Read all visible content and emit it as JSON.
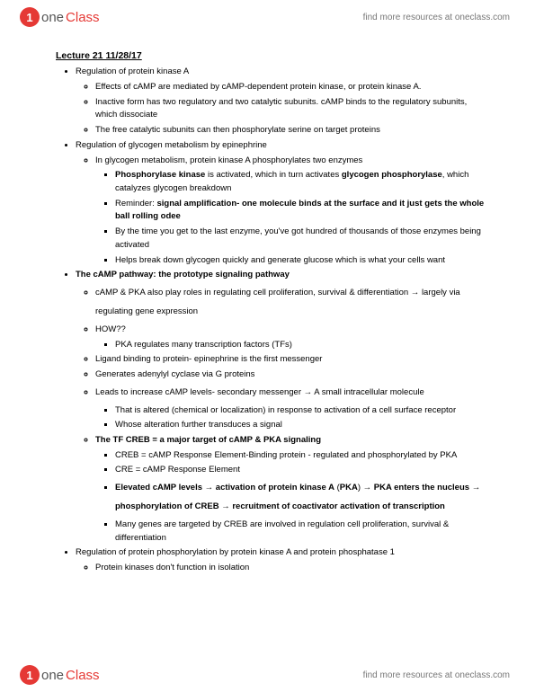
{
  "brand": {
    "badge": "1",
    "one": "one",
    "class": "Class"
  },
  "header_link": "find more resources at oneclass.com",
  "footer_link": "find more resources at oneclass.com",
  "title": "Lecture 21 11/28/17",
  "b1": "Regulation of protein kinase A",
  "b1a": "Effects of cAMP are mediated by cAMP-dependent protein kinase, or protein kinase A.",
  "b1b": "Inactive form has two regulatory and two catalytic subunits. cAMP binds to the regulatory subunits, which dissociate",
  "b1c": "The free catalytic subunits can then phosphorylate serine on target proteins",
  "b2": "Regulation of glycogen metabolism by epinephrine",
  "b2a": "In glycogen metabolism, protein kinase A phosphorylates two enzymes",
  "b2a1_pk": "Phosphorylase kinase",
  "b2a1_mid": " is activated, which in turn activates ",
  "b2a1_gp": "glycogen phosphorylase",
  "b2a1_end": ", which catalyzes glycogen breakdown",
  "b2a2_pre": "Reminder: ",
  "b2a2_bold": "signal amplification- one molecule binds at the surface and it just gets the whole ball rolling odee",
  "b2a3": "By the time you get to the last enzyme, you've got hundred of thousands of those enzymes being activated",
  "b2a4": "Helps break down glycogen quickly and generate glucose which is what your cells want",
  "b3": "The cAMP pathway: the prototype signaling pathway",
  "b3a": "cAMP & PKA also play roles in regulating cell proliferation, survival & differentiation → largely via regulating gene expression",
  "b3b": "HOW??",
  "b3b1": "PKA regulates many transcription factors (TFs)",
  "b3c": "Ligand binding to protein- epinephrine is the first messenger",
  "b3d": "Generates adenylyl cyclase via G proteins",
  "b3e": "Leads to increase cAMP levels- secondary messenger → A small intracellular molecule",
  "b3e1": "That is altered (chemical or localization) in response to activation of a cell surface receptor",
  "b3e2": "Whose alteration further transduces a signal",
  "b3f": "The TF CREB = a major target of cAMP & PKA signaling",
  "b3f1": "CREB = cAMP Response Element-Binding protein - regulated and phosphorylated by PKA",
  "b3f2": "CRE = cAMP Response Element",
  "b3f3a": "Elevated cAMP levels",
  "b3f3b": "activation of protein kinase A",
  "b3f3c": "PKA",
  "b3f3d": "PKA enters the nucleus",
  "b3f3e": "phosphorylation of CREB",
  "b3f3f": "recruitment of coactivator activation of transcription",
  "b3f4": "Many genes are targeted by CREB are involved in regulation cell proliferation, survival & differentiation",
  "b4": "Regulation of protein phosphorylation by protein kinase A and protein phosphatase 1",
  "b4a": "Protein kinases don't function in isolation"
}
